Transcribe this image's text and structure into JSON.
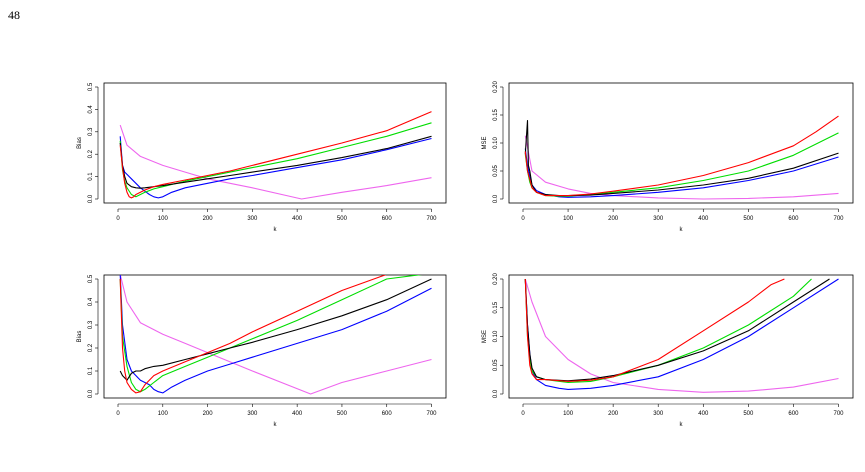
{
  "page": {
    "number": "48"
  },
  "colors": {
    "black": "#000000",
    "red": "#ff0000",
    "green": "#00dd00",
    "blue": "#0000ff",
    "magenta": "#ee66ee"
  },
  "chart_data": [
    {
      "type": "line",
      "panel": "top-left",
      "xlabel": "k",
      "ylabel": "Bias",
      "xlim": [
        0,
        710
      ],
      "ylim": [
        0,
        0.5
      ],
      "xticks": [
        0,
        100,
        200,
        300,
        400,
        500,
        600,
        700
      ],
      "yticks": [
        0.0,
        0.1,
        0.2,
        0.3,
        0.4,
        0.5
      ],
      "series": [
        {
          "color": "black",
          "x": [
            5,
            10,
            15,
            20,
            30,
            40,
            50,
            60,
            80,
            100,
            150,
            200,
            250,
            300,
            400,
            500,
            600,
            700
          ],
          "y": [
            0.25,
            0.15,
            0.1,
            0.07,
            0.055,
            0.05,
            0.048,
            0.05,
            0.055,
            0.06,
            0.075,
            0.09,
            0.105,
            0.12,
            0.15,
            0.185,
            0.225,
            0.28
          ]
        },
        {
          "color": "red",
          "x": [
            5,
            10,
            15,
            20,
            25,
            30,
            35,
            40,
            50,
            60,
            80,
            100,
            150,
            200,
            250,
            300,
            400,
            500,
            600,
            700
          ],
          "y": [
            0.24,
            0.14,
            0.07,
            0.03,
            0.01,
            0.005,
            0.01,
            0.02,
            0.03,
            0.04,
            0.055,
            0.065,
            0.085,
            0.105,
            0.125,
            0.15,
            0.2,
            0.25,
            0.305,
            0.39
          ]
        },
        {
          "color": "green",
          "x": [
            5,
            10,
            15,
            20,
            30,
            40,
            50,
            60,
            80,
            100,
            150,
            200,
            250,
            300,
            400,
            500,
            600,
            700
          ],
          "y": [
            0.26,
            0.13,
            0.08,
            0.05,
            0.02,
            0.01,
            0.02,
            0.03,
            0.045,
            0.055,
            0.08,
            0.1,
            0.12,
            0.14,
            0.18,
            0.23,
            0.28,
            0.34
          ]
        },
        {
          "color": "blue",
          "x": [
            5,
            10,
            15,
            20,
            30,
            40,
            50,
            60,
            70,
            80,
            90,
            100,
            120,
            150,
            200,
            250,
            300,
            400,
            500,
            600,
            700
          ],
          "y": [
            0.28,
            0.15,
            0.12,
            0.11,
            0.09,
            0.07,
            0.05,
            0.035,
            0.02,
            0.01,
            0.005,
            0.01,
            0.03,
            0.05,
            0.07,
            0.09,
            0.105,
            0.14,
            0.175,
            0.22,
            0.27
          ]
        },
        {
          "color": "magenta",
          "x": [
            5,
            20,
            50,
            100,
            150,
            200,
            300,
            410,
            500,
            600,
            700
          ],
          "y": [
            0.33,
            0.24,
            0.19,
            0.15,
            0.12,
            0.09,
            0.05,
            0.0,
            0.03,
            0.06,
            0.095
          ]
        }
      ]
    },
    {
      "type": "line",
      "panel": "top-right",
      "xlabel": "k",
      "ylabel": "MSE",
      "xlim": [
        0,
        710
      ],
      "ylim": [
        0,
        0.2
      ],
      "xticks": [
        0,
        100,
        200,
        300,
        400,
        500,
        600,
        700
      ],
      "yticks": [
        0.0,
        0.05,
        0.1,
        0.15,
        0.2
      ],
      "series": [
        {
          "color": "black",
          "x": [
            5,
            10,
            12,
            15,
            20,
            30,
            50,
            80,
            100,
            150,
            200,
            300,
            400,
            500,
            600,
            700
          ],
          "y": [
            0.08,
            0.14,
            0.06,
            0.05,
            0.025,
            0.012,
            0.008,
            0.006,
            0.006,
            0.007,
            0.01,
            0.016,
            0.025,
            0.037,
            0.055,
            0.082
          ]
        },
        {
          "color": "red",
          "x": [
            5,
            10,
            15,
            20,
            30,
            50,
            80,
            100,
            150,
            200,
            300,
            400,
            500,
            600,
            650,
            700
          ],
          "y": [
            0.085,
            0.05,
            0.035,
            0.02,
            0.012,
            0.006,
            0.006,
            0.006,
            0.009,
            0.014,
            0.025,
            0.042,
            0.065,
            0.095,
            0.12,
            0.148
          ]
        },
        {
          "color": "green",
          "x": [
            5,
            10,
            15,
            20,
            30,
            50,
            80,
            100,
            150,
            200,
            300,
            400,
            500,
            600,
            700
          ],
          "y": [
            0.08,
            0.05,
            0.03,
            0.02,
            0.012,
            0.006,
            0.005,
            0.005,
            0.008,
            0.012,
            0.02,
            0.033,
            0.05,
            0.078,
            0.118
          ]
        },
        {
          "color": "blue",
          "x": [
            5,
            10,
            15,
            20,
            30,
            50,
            80,
            100,
            150,
            200,
            300,
            400,
            500,
            600,
            700
          ],
          "y": [
            0.09,
            0.06,
            0.04,
            0.025,
            0.015,
            0.008,
            0.004,
            0.003,
            0.004,
            0.006,
            0.012,
            0.02,
            0.033,
            0.05,
            0.075
          ]
        },
        {
          "color": "magenta",
          "x": [
            5,
            20,
            50,
            100,
            150,
            200,
            300,
            400,
            500,
            600,
            700
          ],
          "y": [
            0.113,
            0.05,
            0.03,
            0.018,
            0.01,
            0.006,
            0.002,
            0.0,
            0.001,
            0.004,
            0.01
          ]
        }
      ]
    },
    {
      "type": "line",
      "panel": "bottom-left",
      "xlabel": "k",
      "ylabel": "Bias",
      "xlim": [
        0,
        710
      ],
      "ylim": [
        0,
        0.5
      ],
      "xticks": [
        0,
        100,
        200,
        300,
        400,
        500,
        600,
        700
      ],
      "yticks": [
        0.0,
        0.1,
        0.2,
        0.3,
        0.4,
        0.5
      ],
      "series": [
        {
          "color": "black",
          "x": [
            5,
            10,
            20,
            30,
            40,
            50,
            60,
            80,
            100,
            150,
            200,
            250,
            300,
            400,
            500,
            600,
            700
          ],
          "y": [
            0.1,
            0.08,
            0.06,
            0.09,
            0.1,
            0.1,
            0.11,
            0.12,
            0.125,
            0.15,
            0.175,
            0.2,
            0.225,
            0.28,
            0.34,
            0.41,
            0.5
          ]
        },
        {
          "color": "red",
          "x": [
            5,
            10,
            15,
            20,
            30,
            40,
            50,
            60,
            80,
            100,
            150,
            200,
            250,
            300,
            400,
            500,
            600,
            650
          ],
          "y": [
            0.5,
            0.2,
            0.1,
            0.05,
            0.02,
            0.005,
            0.01,
            0.04,
            0.08,
            0.1,
            0.14,
            0.18,
            0.22,
            0.27,
            0.36,
            0.45,
            0.52,
            0.52
          ]
        },
        {
          "color": "green",
          "x": [
            5,
            10,
            20,
            30,
            40,
            50,
            60,
            80,
            100,
            150,
            200,
            250,
            300,
            400,
            500,
            600,
            680
          ],
          "y": [
            0.5,
            0.25,
            0.12,
            0.05,
            0.02,
            0.01,
            0.02,
            0.05,
            0.08,
            0.12,
            0.16,
            0.2,
            0.24,
            0.32,
            0.41,
            0.5,
            0.52
          ]
        },
        {
          "color": "blue",
          "x": [
            5,
            10,
            20,
            30,
            40,
            50,
            60,
            70,
            80,
            90,
            100,
            120,
            150,
            200,
            250,
            300,
            400,
            500,
            600,
            700
          ],
          "y": [
            0.52,
            0.3,
            0.15,
            0.1,
            0.08,
            0.06,
            0.05,
            0.04,
            0.02,
            0.01,
            0.005,
            0.03,
            0.06,
            0.1,
            0.13,
            0.16,
            0.22,
            0.28,
            0.36,
            0.46
          ]
        },
        {
          "color": "magenta",
          "x": [
            5,
            20,
            50,
            100,
            150,
            200,
            300,
            430,
            500,
            600,
            700
          ],
          "y": [
            0.52,
            0.4,
            0.31,
            0.26,
            0.22,
            0.18,
            0.1,
            0.0,
            0.05,
            0.1,
            0.15
          ]
        }
      ]
    },
    {
      "type": "line",
      "panel": "bottom-right",
      "xlabel": "k",
      "ylabel": "MSE",
      "xlim": [
        0,
        710
      ],
      "ylim": [
        0,
        0.2
      ],
      "xticks": [
        0,
        100,
        200,
        300,
        400,
        500,
        600,
        700
      ],
      "yticks": [
        0.0,
        0.05,
        0.1,
        0.15,
        0.2
      ],
      "series": [
        {
          "color": "black",
          "x": [
            5,
            10,
            15,
            20,
            30,
            50,
            100,
            150,
            200,
            300,
            400,
            500,
            600,
            680
          ],
          "y": [
            0.2,
            0.12,
            0.07,
            0.045,
            0.03,
            0.025,
            0.023,
            0.026,
            0.032,
            0.05,
            0.075,
            0.11,
            0.16,
            0.2
          ]
        },
        {
          "color": "red",
          "x": [
            5,
            10,
            15,
            20,
            30,
            50,
            100,
            150,
            200,
            250,
            300,
            400,
            500,
            550,
            580
          ],
          "y": [
            0.2,
            0.1,
            0.05,
            0.035,
            0.025,
            0.025,
            0.022,
            0.024,
            0.03,
            0.045,
            0.06,
            0.11,
            0.16,
            0.19,
            0.2
          ]
        },
        {
          "color": "green",
          "x": [
            5,
            10,
            15,
            20,
            30,
            50,
            100,
            150,
            200,
            300,
            400,
            500,
            600,
            640
          ],
          "y": [
            0.2,
            0.1,
            0.06,
            0.04,
            0.03,
            0.025,
            0.02,
            0.022,
            0.03,
            0.05,
            0.08,
            0.12,
            0.17,
            0.2
          ]
        },
        {
          "color": "blue",
          "x": [
            5,
            10,
            15,
            20,
            30,
            50,
            80,
            100,
            150,
            200,
            300,
            400,
            500,
            600,
            700
          ],
          "y": [
            0.2,
            0.12,
            0.07,
            0.04,
            0.025,
            0.015,
            0.01,
            0.008,
            0.01,
            0.015,
            0.03,
            0.06,
            0.1,
            0.15,
            0.2
          ]
        },
        {
          "color": "magenta",
          "x": [
            5,
            20,
            50,
            100,
            150,
            200,
            300,
            400,
            500,
            600,
            700
          ],
          "y": [
            0.2,
            0.16,
            0.1,
            0.06,
            0.035,
            0.02,
            0.008,
            0.003,
            0.005,
            0.012,
            0.027
          ]
        }
      ]
    }
  ]
}
